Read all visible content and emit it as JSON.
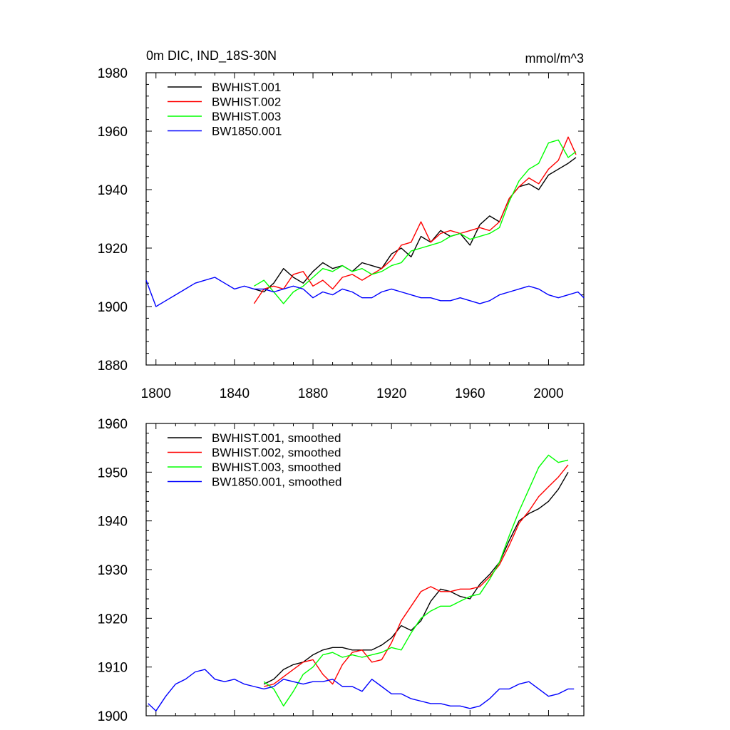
{
  "header": {
    "title_left": "0m DIC, IND_18S-30N",
    "title_right": "mmol/m^3"
  },
  "chart_data": [
    {
      "type": "line",
      "title": "0m DIC, IND_18S-30N",
      "units": "mmol/m^3",
      "xlim": [
        1795,
        2018
      ],
      "ylim": [
        1880,
        1980
      ],
      "x_ticks": [
        1800,
        1840,
        1880,
        1920,
        1960,
        2000
      ],
      "y_ticks": [
        1880,
        1900,
        1920,
        1940,
        1960,
        1980
      ],
      "grid": false,
      "legend_position": "top-left",
      "series": [
        {
          "name": "BWHIST.001",
          "color": "#000000",
          "x": [
            1850,
            1855,
            1860,
            1865,
            1870,
            1875,
            1880,
            1885,
            1890,
            1895,
            1900,
            1905,
            1910,
            1915,
            1920,
            1925,
            1930,
            1935,
            1940,
            1945,
            1950,
            1955,
            1960,
            1965,
            1970,
            1975,
            1980,
            1985,
            1990,
            1995,
            2000,
            2005,
            2010,
            2014
          ],
          "values": [
            1906,
            1905,
            1908,
            1913,
            1910,
            1908,
            1912,
            1915,
            1913,
            1914,
            1912,
            1915,
            1914,
            1913,
            1918,
            1920,
            1917,
            1924,
            1922,
            1926,
            1924,
            1925,
            1921,
            1928,
            1931,
            1929,
            1937,
            1941,
            1942,
            1940,
            1945,
            1947,
            1949,
            1951
          ]
        },
        {
          "name": "BWHIST.002",
          "color": "#ff0000",
          "x": [
            1850,
            1855,
            1860,
            1865,
            1870,
            1875,
            1880,
            1885,
            1890,
            1895,
            1900,
            1905,
            1910,
            1915,
            1920,
            1925,
            1930,
            1935,
            1940,
            1945,
            1950,
            1955,
            1960,
            1965,
            1970,
            1975,
            1980,
            1985,
            1990,
            1995,
            2000,
            2005,
            2010,
            2014
          ],
          "values": [
            1901,
            1906,
            1907,
            1906,
            1911,
            1912,
            1907,
            1909,
            1906,
            1910,
            1911,
            1909,
            1911,
            1913,
            1916,
            1921,
            1922,
            1929,
            1922,
            1925,
            1926,
            1925,
            1926,
            1927,
            1926,
            1929,
            1937,
            1941,
            1944,
            1942,
            1947,
            1950,
            1958,
            1952
          ]
        },
        {
          "name": "BWHIST.003",
          "color": "#00ff00",
          "x": [
            1850,
            1855,
            1860,
            1865,
            1870,
            1875,
            1880,
            1885,
            1890,
            1895,
            1900,
            1905,
            1910,
            1915,
            1920,
            1925,
            1930,
            1935,
            1940,
            1945,
            1950,
            1955,
            1960,
            1965,
            1970,
            1975,
            1980,
            1985,
            1990,
            1995,
            2000,
            2005,
            2010,
            2014
          ],
          "values": [
            1907,
            1909,
            1905,
            1901,
            1905,
            1907,
            1910,
            1913,
            1912,
            1914,
            1912,
            1913,
            1911,
            1912,
            1914,
            1915,
            1919,
            1920,
            1921,
            1922,
            1924,
            1925,
            1923,
            1924,
            1925,
            1927,
            1936,
            1943,
            1947,
            1949,
            1956,
            1957,
            1951,
            1953
          ]
        },
        {
          "name": "BW1850.001",
          "color": "#0000ff",
          "x": [
            1795,
            1800,
            1805,
            1810,
            1815,
            1820,
            1825,
            1830,
            1835,
            1840,
            1845,
            1850,
            1855,
            1860,
            1865,
            1870,
            1875,
            1880,
            1885,
            1890,
            1895,
            1900,
            1905,
            1910,
            1915,
            1920,
            1925,
            1930,
            1935,
            1940,
            1945,
            1950,
            1955,
            1960,
            1965,
            1970,
            1975,
            1980,
            1985,
            1990,
            1995,
            2000,
            2005,
            2010,
            2015,
            2018
          ],
          "values": [
            1909,
            1900,
            1902,
            1904,
            1906,
            1908,
            1909,
            1910,
            1908,
            1906,
            1907,
            1906,
            1906,
            1905,
            1906,
            1907,
            1906,
            1903,
            1905,
            1904,
            1906,
            1905,
            1903,
            1903,
            1905,
            1906,
            1905,
            1904,
            1903,
            1903,
            1902,
            1902,
            1903,
            1902,
            1901,
            1902,
            1904,
            1905,
            1906,
            1907,
            1906,
            1904,
            1903,
            1904,
            1905,
            1903
          ]
        }
      ]
    },
    {
      "type": "line",
      "xlim": [
        1795,
        2018
      ],
      "ylim": [
        1900,
        1960
      ],
      "x_ticks": [
        1800,
        1840,
        1880,
        1920,
        1960,
        2000
      ],
      "y_ticks": [
        1900,
        1910,
        1920,
        1930,
        1940,
        1950,
        1960
      ],
      "grid": false,
      "legend_position": "top-left",
      "series": [
        {
          "name": "BWHIST.001, smoothed",
          "color": "#000000",
          "x": [
            1855,
            1860,
            1865,
            1870,
            1875,
            1880,
            1885,
            1890,
            1895,
            1900,
            1905,
            1910,
            1915,
            1920,
            1925,
            1930,
            1935,
            1940,
            1945,
            1950,
            1955,
            1960,
            1965,
            1970,
            1975,
            1980,
            1985,
            1990,
            1995,
            2000,
            2005,
            2010
          ],
          "values": [
            1906.5,
            1907.5,
            1909.5,
            1910.5,
            1911.0,
            1912.5,
            1913.5,
            1914.0,
            1914.0,
            1913.5,
            1913.5,
            1913.5,
            1914.5,
            1916.0,
            1918.5,
            1917.5,
            1919.5,
            1923.5,
            1926.0,
            1925.5,
            1924.5,
            1924.0,
            1927.0,
            1929.0,
            1931.5,
            1936.0,
            1940.0,
            1941.5,
            1942.5,
            1944.0,
            1946.5,
            1950.0
          ]
        },
        {
          "name": "BWHIST.002, smoothed",
          "color": "#ff0000",
          "x": [
            1855,
            1860,
            1865,
            1870,
            1875,
            1880,
            1885,
            1890,
            1895,
            1900,
            1905,
            1910,
            1915,
            1920,
            1925,
            1930,
            1935,
            1940,
            1945,
            1950,
            1955,
            1960,
            1965,
            1970,
            1975,
            1980,
            1985,
            1990,
            1995,
            2000,
            2005,
            2010
          ],
          "values": [
            1906.0,
            1906.5,
            1908.0,
            1909.5,
            1911.0,
            1911.5,
            1908.5,
            1906.5,
            1910.5,
            1913.0,
            1913.5,
            1911.0,
            1911.5,
            1915.0,
            1919.5,
            1922.5,
            1925.5,
            1926.5,
            1925.5,
            1925.5,
            1926.0,
            1926.0,
            1926.5,
            1928.5,
            1931.0,
            1935.0,
            1939.5,
            1942.0,
            1945.0,
            1947.0,
            1949.0,
            1951.5
          ]
        },
        {
          "name": "BWHIST.003, smoothed",
          "color": "#00ff00",
          "x": [
            1855,
            1860,
            1865,
            1870,
            1875,
            1880,
            1885,
            1890,
            1895,
            1900,
            1905,
            1910,
            1915,
            1920,
            1925,
            1930,
            1935,
            1940,
            1945,
            1950,
            1955,
            1960,
            1965,
            1970,
            1975,
            1980,
            1985,
            1990,
            1995,
            2000,
            2005,
            2010
          ],
          "values": [
            1907.0,
            1905.5,
            1902.0,
            1905.0,
            1908.5,
            1910.0,
            1912.5,
            1913.0,
            1912.0,
            1912.5,
            1912.0,
            1912.5,
            1913.0,
            1914.0,
            1913.5,
            1917.0,
            1920.0,
            1921.5,
            1922.5,
            1922.5,
            1923.5,
            1924.5,
            1925.0,
            1928.0,
            1931.5,
            1937.0,
            1942.0,
            1946.5,
            1951.0,
            1953.5,
            1952.0,
            1952.5
          ]
        },
        {
          "name": "BW1850.001, smoothed",
          "color": "#0000ff",
          "x": [
            1796,
            1800,
            1805,
            1810,
            1815,
            1820,
            1825,
            1830,
            1835,
            1840,
            1845,
            1850,
            1855,
            1860,
            1865,
            1870,
            1875,
            1880,
            1885,
            1890,
            1895,
            1900,
            1905,
            1910,
            1915,
            1920,
            1925,
            1930,
            1935,
            1940,
            1945,
            1950,
            1955,
            1960,
            1965,
            1970,
            1975,
            1980,
            1985,
            1990,
            1995,
            2000,
            2005,
            2010,
            2013
          ],
          "values": [
            1902.5,
            1901.0,
            1904.0,
            1906.5,
            1907.5,
            1909.0,
            1909.5,
            1907.5,
            1907.0,
            1907.5,
            1906.5,
            1906.0,
            1905.5,
            1906.0,
            1907.5,
            1907.0,
            1906.5,
            1907.0,
            1907.0,
            1907.5,
            1906.0,
            1906.0,
            1905.0,
            1907.5,
            1906.0,
            1904.5,
            1904.5,
            1903.5,
            1903.0,
            1902.5,
            1902.5,
            1902.0,
            1902.0,
            1901.5,
            1902.0,
            1903.5,
            1905.5,
            1905.5,
            1906.5,
            1907.0,
            1905.5,
            1904.0,
            1904.5,
            1905.5,
            1905.5
          ]
        }
      ]
    }
  ]
}
